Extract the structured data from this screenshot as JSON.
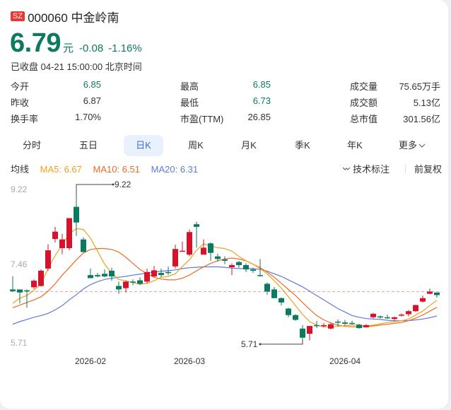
{
  "header": {
    "market_badge": "SZ",
    "title": "000060 中金岭南",
    "price": "6.79",
    "unit": "元",
    "change": "-0.08",
    "change_pct": "-1.16%",
    "status": "已收盘 04-21 15:00:00 北京时间"
  },
  "stats": [
    {
      "label": "今开",
      "value": "6.85",
      "color": "green"
    },
    {
      "label": "昨收",
      "value": "6.87",
      "color": ""
    },
    {
      "label": "换手率",
      "value": "1.70%",
      "color": ""
    },
    {
      "label": "最高",
      "value": "6.85",
      "color": "green"
    },
    {
      "label": "最低",
      "value": "6.73",
      "color": "green"
    },
    {
      "label": "市盈(TTM)",
      "value": "26.85",
      "color": ""
    },
    {
      "label": "成交量",
      "value": "75.65万手",
      "color": ""
    },
    {
      "label": "成交额",
      "value": "5.13亿",
      "color": ""
    },
    {
      "label": "总市值",
      "value": "301.56亿",
      "color": ""
    }
  ],
  "tabs": [
    {
      "label": "分时",
      "active": false
    },
    {
      "label": "五日",
      "active": false
    },
    {
      "label": "日K",
      "active": true
    },
    {
      "label": "周K",
      "active": false
    },
    {
      "label": "月K",
      "active": false
    },
    {
      "label": "季K",
      "active": false
    },
    {
      "label": "年K",
      "active": false
    },
    {
      "label": "更多",
      "active": false
    }
  ],
  "ma": {
    "label": "均线",
    "ma5": "MA5: 6.67",
    "ma10": "MA10: 6.51",
    "ma20": "MA20: 6.31",
    "tech_label": "技术标注",
    "adjust_label": "前复权"
  },
  "colors": {
    "up": "#d6122c",
    "down": "#0d7a5f",
    "ma5": "#f0a21b",
    "ma10": "#f06a22",
    "ma20": "#5b7be0",
    "prev_close_line": "#f3a3a3"
  },
  "chart_data": {
    "type": "candlestick",
    "title": "000060 中金岭南 日K",
    "y_ticks": [
      "9.22",
      "7.46",
      "5.71"
    ],
    "ylim": [
      5.71,
      9.22
    ],
    "x_ticks": [
      "2026-02",
      "2026-03",
      "2026-04"
    ],
    "prev_close": 6.87,
    "max_annotation": "9.22",
    "min_annotation": "5.71",
    "legend": [
      "MA5: 6.67",
      "MA10: 6.51",
      "MA20: 6.31"
    ],
    "candles": [
      {
        "o": 6.92,
        "c": 6.88,
        "h": 7.22,
        "l": 6.86
      },
      {
        "o": 6.92,
        "c": 6.85,
        "h": 6.92,
        "l": 6.6
      },
      {
        "o": 6.9,
        "c": 6.88,
        "h": 6.92,
        "l": 6.5
      },
      {
        "o": 6.97,
        "c": 7.12,
        "h": 7.15,
        "l": 6.93
      },
      {
        "o": 7.0,
        "c": 7.35,
        "h": 7.38,
        "l": 6.98
      },
      {
        "o": 7.4,
        "c": 7.82,
        "h": 7.96,
        "l": 7.35
      },
      {
        "o": 8.08,
        "c": 8.25,
        "h": 8.36,
        "l": 8.0
      },
      {
        "o": 7.87,
        "c": 8.07,
        "h": 8.2,
        "l": 7.73
      },
      {
        "o": 7.87,
        "c": 8.56,
        "h": 8.56,
        "l": 7.82
      },
      {
        "o": 8.82,
        "c": 8.46,
        "h": 9.22,
        "l": 8.15
      },
      {
        "o": 8.07,
        "c": 7.78,
        "h": 8.12,
        "l": 7.78
      },
      {
        "o": 7.25,
        "c": 7.18,
        "h": 7.4,
        "l": 7.18
      },
      {
        "o": 7.25,
        "c": 7.22,
        "h": 7.3,
        "l": 7.2
      },
      {
        "o": 7.28,
        "c": 7.22,
        "h": 7.38,
        "l": 7.2
      },
      {
        "o": 7.35,
        "c": 7.22,
        "h": 7.42,
        "l": 7.12
      },
      {
        "o": 7.0,
        "c": 6.92,
        "h": 7.1,
        "l": 6.82
      },
      {
        "o": 6.95,
        "c": 7.1,
        "h": 7.12,
        "l": 6.85
      },
      {
        "o": 7.1,
        "c": 7.08,
        "h": 7.15,
        "l": 7.02
      },
      {
        "o": 7.13,
        "c": 7.05,
        "h": 7.2,
        "l": 7.02
      },
      {
        "o": 7.1,
        "c": 7.32,
        "h": 7.4,
        "l": 7.05
      },
      {
        "o": 7.22,
        "c": 7.36,
        "h": 7.46,
        "l": 7.2
      },
      {
        "o": 7.3,
        "c": 7.25,
        "h": 7.4,
        "l": 7.2
      },
      {
        "o": 7.32,
        "c": 7.3,
        "h": 7.45,
        "l": 7.25
      },
      {
        "o": 7.45,
        "c": 7.85,
        "h": 7.95,
        "l": 7.4
      },
      {
        "o": 7.8,
        "c": 7.81,
        "h": 8.02,
        "l": 7.8
      },
      {
        "o": 7.72,
        "c": 8.24,
        "h": 8.3,
        "l": 7.68
      },
      {
        "o": 8.42,
        "c": 8.36,
        "h": 8.48,
        "l": 7.88
      },
      {
        "o": 7.72,
        "c": 7.88,
        "h": 8.07,
        "l": 7.72
      },
      {
        "o": 7.98,
        "c": 7.76,
        "h": 8.0,
        "l": 7.58
      },
      {
        "o": 7.68,
        "c": 7.62,
        "h": 7.74,
        "l": 7.56
      },
      {
        "o": 7.61,
        "c": 7.58,
        "h": 7.68,
        "l": 7.5
      },
      {
        "o": 7.43,
        "c": 7.48,
        "h": 7.52,
        "l": 7.25
      },
      {
        "o": 7.55,
        "c": 7.48,
        "h": 7.58,
        "l": 7.42
      },
      {
        "o": 7.48,
        "c": 7.38,
        "h": 7.52,
        "l": 7.32
      },
      {
        "o": 7.38,
        "c": 7.35,
        "h": 7.42,
        "l": 7.3
      },
      {
        "o": 7.25,
        "c": 7.23,
        "h": 7.62,
        "l": 7.22
      },
      {
        "o": 7.05,
        "c": 6.87,
        "h": 7.08,
        "l": 6.8
      },
      {
        "o": 6.92,
        "c": 6.72,
        "h": 6.98,
        "l": 6.72
      },
      {
        "o": 6.72,
        "c": 6.62,
        "h": 6.74,
        "l": 6.55
      },
      {
        "o": 6.48,
        "c": 6.33,
        "h": 6.5,
        "l": 6.28
      },
      {
        "o": 6.33,
        "c": 6.22,
        "h": 6.35,
        "l": 6.2
      },
      {
        "o": 6.02,
        "c": 5.81,
        "h": 6.1,
        "l": 5.71
      },
      {
        "o": 5.9,
        "c": 6.08,
        "h": 6.08,
        "l": 5.75
      },
      {
        "o": 6.1,
        "c": 6.08,
        "h": 6.2,
        "l": 6.03
      },
      {
        "o": 6.1,
        "c": 6.1,
        "h": 6.15,
        "l": 6.05
      },
      {
        "o": 6.02,
        "c": 6.12,
        "h": 6.15,
        "l": 6.0
      },
      {
        "o": 6.18,
        "c": 6.16,
        "h": 6.23,
        "l": 6.07
      },
      {
        "o": 6.16,
        "c": 6.13,
        "h": 6.22,
        "l": 6.1
      },
      {
        "o": 6.15,
        "c": 6.13,
        "h": 6.2,
        "l": 6.11
      },
      {
        "o": 6.11,
        "c": 6.03,
        "h": 6.13,
        "l": 6.02
      },
      {
        "o": 6.05,
        "c": 6.1,
        "h": 6.12,
        "l": 6.04
      },
      {
        "o": 6.28,
        "c": 6.36,
        "h": 6.38,
        "l": 6.25
      },
      {
        "o": 6.3,
        "c": 6.28,
        "h": 6.32,
        "l": 6.25
      },
      {
        "o": 6.28,
        "c": 6.26,
        "h": 6.34,
        "l": 6.24
      },
      {
        "o": 6.24,
        "c": 6.28,
        "h": 6.3,
        "l": 6.2
      },
      {
        "o": 6.33,
        "c": 6.34,
        "h": 6.37,
        "l": 6.3
      },
      {
        "o": 6.35,
        "c": 6.42,
        "h": 6.45,
        "l": 6.3
      },
      {
        "o": 6.42,
        "c": 6.56,
        "h": 6.57,
        "l": 6.4
      },
      {
        "o": 6.64,
        "c": 6.72,
        "h": 6.78,
        "l": 6.62
      },
      {
        "o": 6.82,
        "c": 6.87,
        "h": 6.94,
        "l": 6.81
      },
      {
        "o": 6.85,
        "c": 6.79,
        "h": 6.85,
        "l": 6.73
      }
    ],
    "ma5": [
      6.6,
      6.72,
      6.78,
      6.9,
      7.05,
      7.4,
      7.7,
      7.95,
      8.2,
      8.32,
      8.3,
      8.1,
      7.8,
      7.5,
      7.3,
      7.15,
      7.12,
      7.08,
      7.04,
      7.06,
      7.12,
      7.2,
      7.22,
      7.28,
      7.45,
      7.6,
      7.82,
      7.97,
      7.92,
      7.88,
      7.86,
      7.8,
      7.68,
      7.58,
      7.5,
      7.4,
      7.28,
      7.12,
      6.95,
      6.75,
      6.55,
      6.35,
      6.18,
      6.1,
      6.06,
      6.06,
      6.07,
      6.09,
      6.1,
      6.1,
      6.08,
      6.1,
      6.13,
      6.16,
      6.18,
      6.2,
      6.24,
      6.33,
      6.42,
      6.55,
      6.67
    ],
    "ma10": [
      6.5,
      6.56,
      6.62,
      6.68,
      6.75,
      6.88,
      7.05,
      7.25,
      7.42,
      7.6,
      7.76,
      7.84,
      7.86,
      7.86,
      7.84,
      7.78,
      7.66,
      7.52,
      7.38,
      7.28,
      7.2,
      7.16,
      7.14,
      7.14,
      7.18,
      7.25,
      7.35,
      7.44,
      7.52,
      7.58,
      7.62,
      7.64,
      7.62,
      7.58,
      7.5,
      7.42,
      7.32,
      7.2,
      7.06,
      6.92,
      6.78,
      6.62,
      6.46,
      6.32,
      6.22,
      6.15,
      6.1,
      6.07,
      6.06,
      6.06,
      6.06,
      6.08,
      6.1,
      6.12,
      6.14,
      6.16,
      6.2,
      6.26,
      6.33,
      6.42,
      6.51
    ],
    "ma20": [
      6.12,
      6.18,
      6.23,
      6.28,
      6.32,
      6.37,
      6.45,
      6.55,
      6.68,
      6.8,
      6.93,
      7.03,
      7.1,
      7.15,
      7.18,
      7.2,
      7.22,
      7.25,
      7.27,
      7.3,
      7.32,
      7.34,
      7.35,
      7.37,
      7.4,
      7.42,
      7.43,
      7.44,
      7.44,
      7.44,
      7.43,
      7.41,
      7.4,
      7.4,
      7.4,
      7.38,
      7.34,
      7.28,
      7.22,
      7.14,
      7.06,
      6.98,
      6.88,
      6.78,
      6.68,
      6.58,
      6.48,
      6.4,
      6.32,
      6.28,
      6.25,
      6.24,
      6.23,
      6.21,
      6.2,
      6.2,
      6.2,
      6.22,
      6.24,
      6.27,
      6.31
    ]
  }
}
